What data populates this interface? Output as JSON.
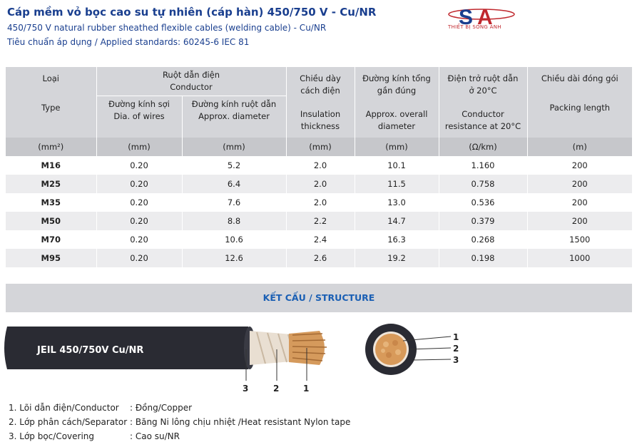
{
  "header": {
    "title": "Cáp mềm vỏ bọc cao su tự nhiên (cáp hàn) 450/750 V - Cu/NR",
    "subtitle_en": "450/750 V natural rubber sheathed flexible cables (welding cable) - Cu/NR",
    "standards": "Tiêu chuẩn áp dụng / Applied standards: 60245-6 IEC 81",
    "logo_text": "SA",
    "logo_sub": "THIẾT BỊ SONG ANH",
    "logo_colors": {
      "s": "#1a3f8f",
      "a": "#c0282e"
    }
  },
  "table": {
    "col_type_vi": "Loại",
    "col_type_en": "Type",
    "col_conductor_vi": "Ruột dẫn điện",
    "col_conductor_en": "Conductor",
    "col_wire_vi": "Đường kính sợi",
    "col_wire_en": "Dia. of wires",
    "col_diam_vi": "Đường kính ruột dẫn",
    "col_diam_en": "Approx. diameter",
    "col_ins_vi1": "Chiều dày",
    "col_ins_vi2": "cách điện",
    "col_ins_en1": "Insulation",
    "col_ins_en2": "thickness",
    "col_overall_vi1": "Đường kính tổng",
    "col_overall_vi2": "gần đúng",
    "col_overall_en1": "Approx. overall",
    "col_overall_en2": "diameter",
    "col_res_vi1": "Điện trở ruột dẫn",
    "col_res_vi2": "ở 20°C",
    "col_res_en1": "Conductor",
    "col_res_en2": "resistance at 20°C",
    "col_pack_vi": "Chiều dài đóng gói",
    "col_pack_en": "Packing length",
    "units": [
      "(mm²)",
      "(mm)",
      "(mm)",
      "(mm)",
      "(mm)",
      "(Ω/km)",
      "(m)"
    ],
    "rows": [
      [
        "M16",
        "0.20",
        "5.2",
        "2.0",
        "10.1",
        "1.160",
        "200"
      ],
      [
        "M25",
        "0.20",
        "6.4",
        "2.0",
        "11.5",
        "0.758",
        "200"
      ],
      [
        "M35",
        "0.20",
        "7.6",
        "2.0",
        "13.0",
        "0.536",
        "200"
      ],
      [
        "M50",
        "0.20",
        "8.8",
        "2.2",
        "14.7",
        "0.379",
        "200"
      ],
      [
        "M70",
        "0.20",
        "10.6",
        "2.4",
        "16.3",
        "0.268",
        "1500"
      ],
      [
        "M95",
        "0.20",
        "12.6",
        "2.6",
        "19.2",
        "0.198",
        "1000"
      ]
    ]
  },
  "structure": {
    "title": "KẾT CẤU / STRUCTURE",
    "cable_label": "JEIL 450/750V Cu/NR",
    "side_numbers": [
      "3",
      "2",
      "1"
    ],
    "section_numbers": [
      "1",
      "2",
      "3"
    ],
    "legend": [
      {
        "key": "1. Lõi dẫn điện/Conductor",
        "value": ": Đồng/Copper"
      },
      {
        "key": "2. Lớp phân cách/Separator",
        "value": ": Băng Ni lông chịu nhiệt /Heat resistant Nylon tape"
      },
      {
        "key": "3. Lớp bọc/Covering",
        "value": ": Cao su/NR"
      }
    ]
  }
}
